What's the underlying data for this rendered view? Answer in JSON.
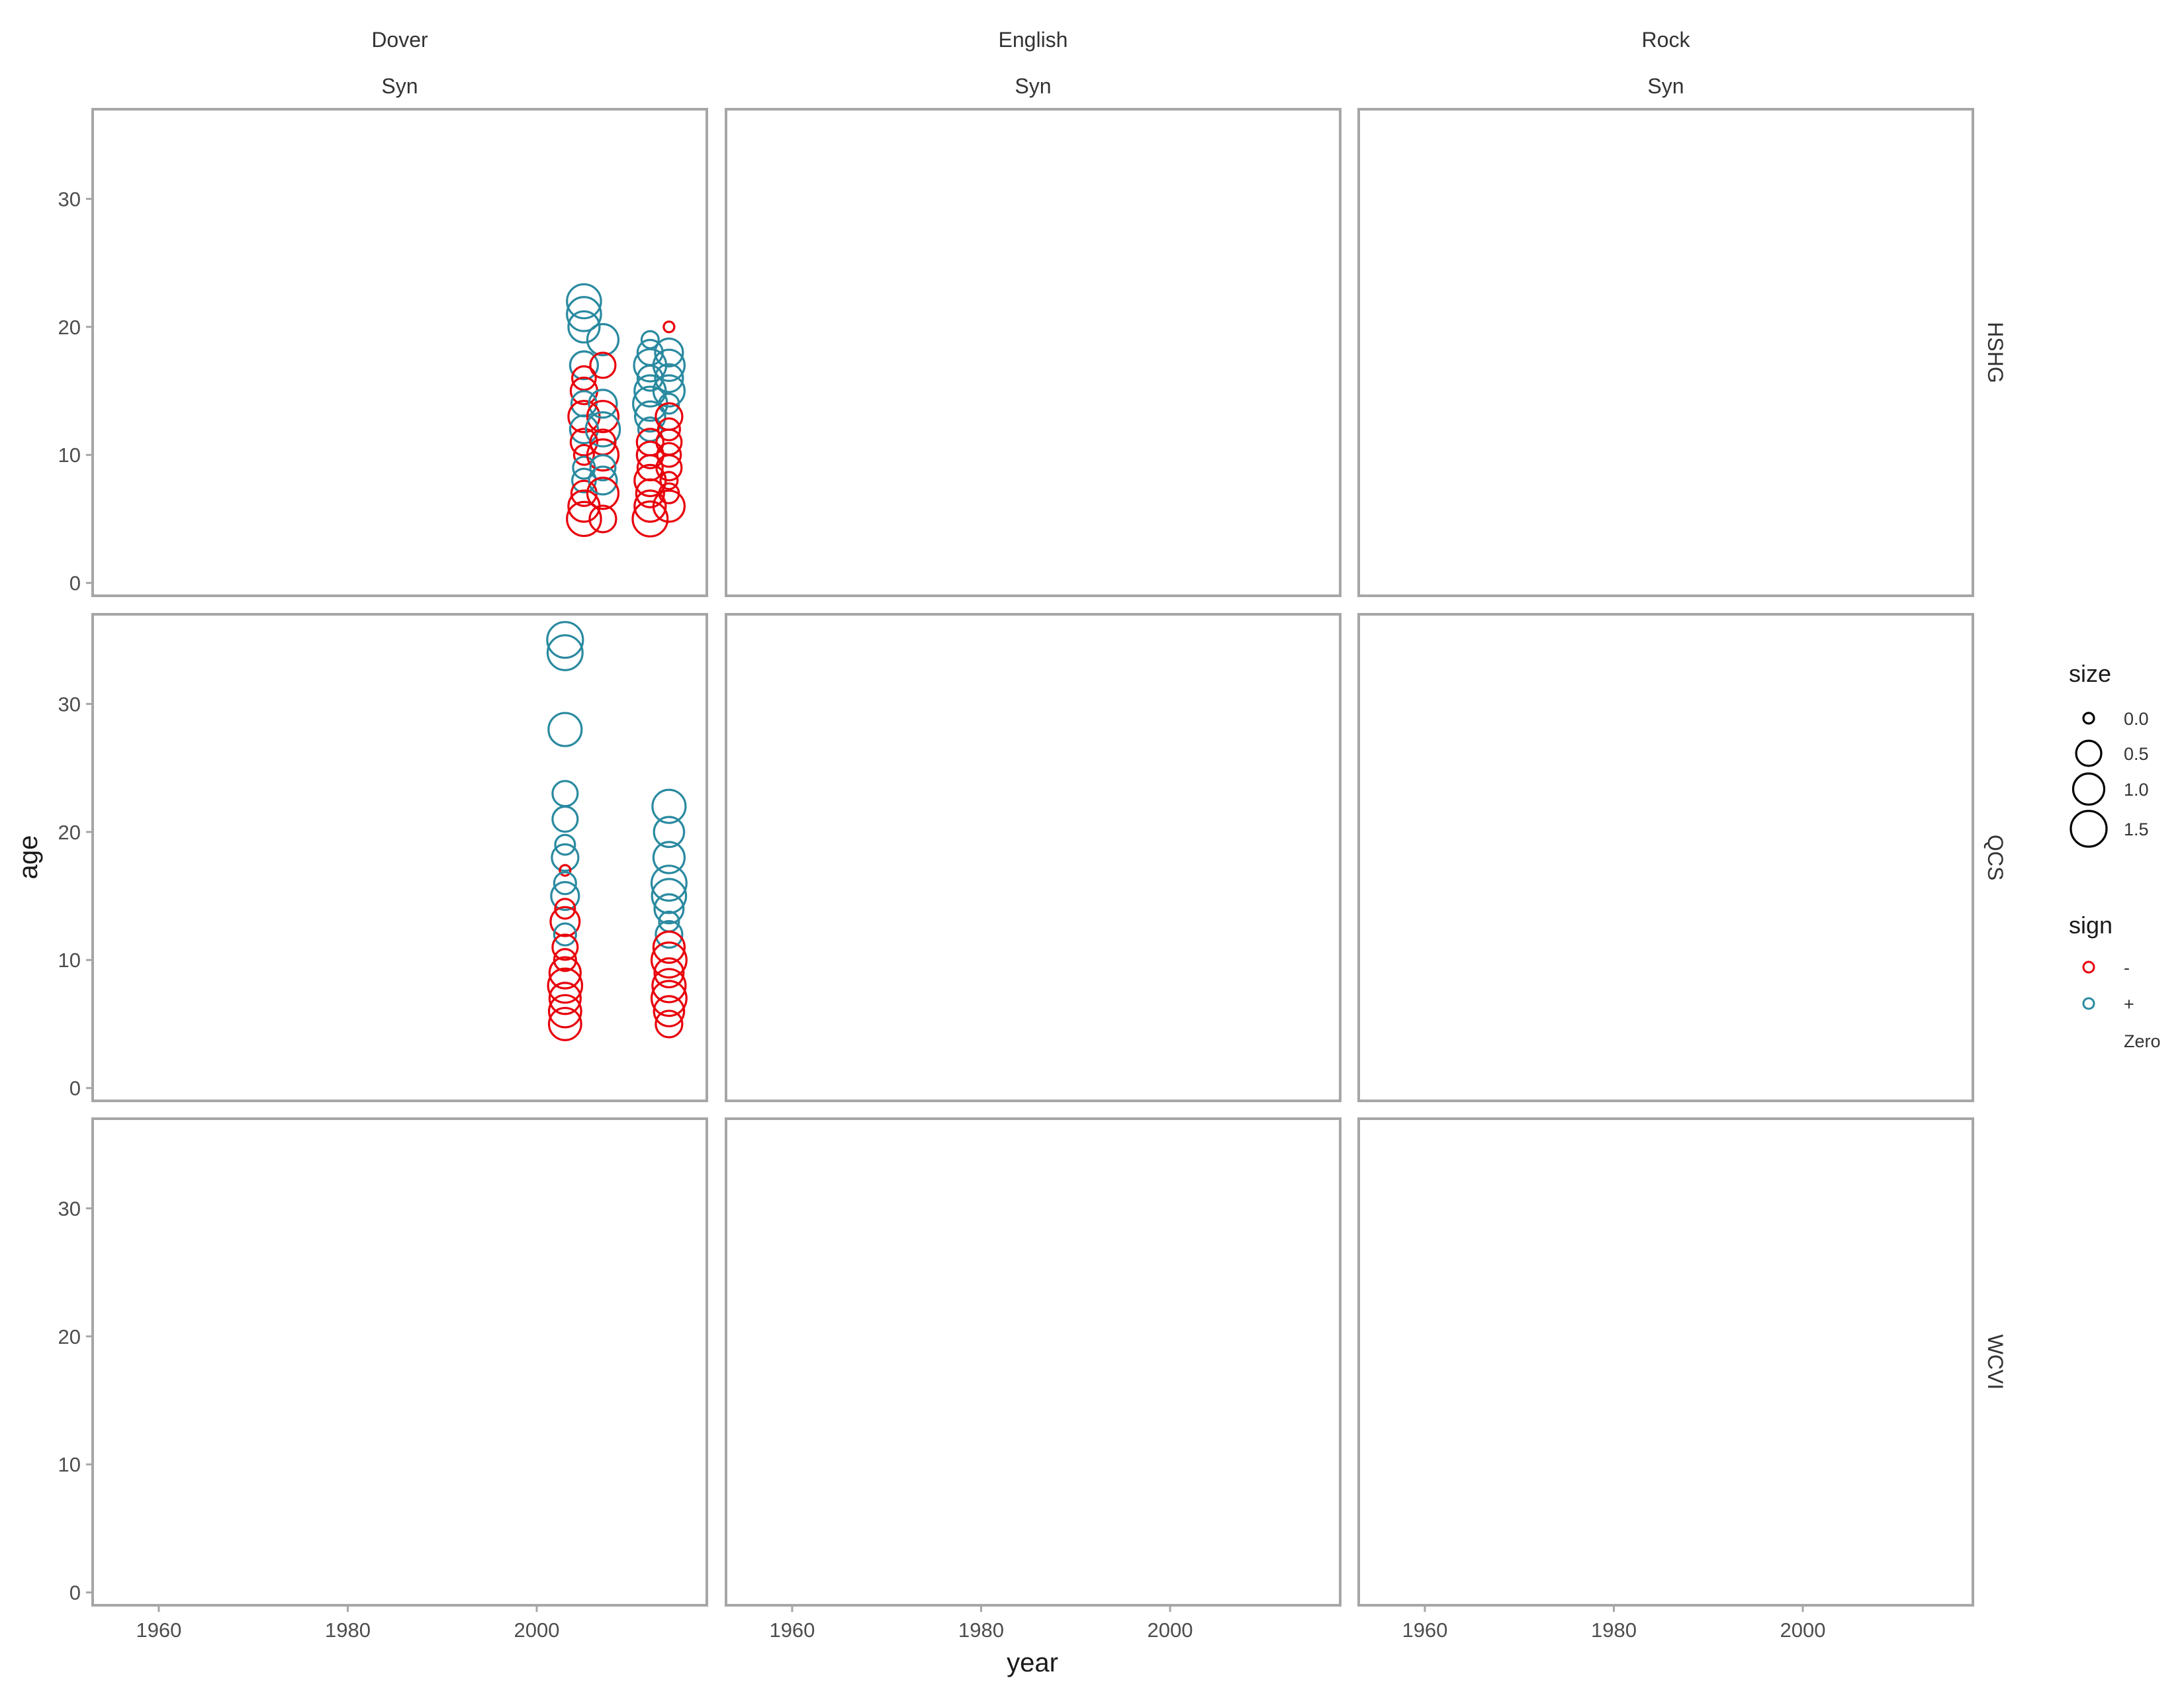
{
  "chart_data": {
    "type": "scatter",
    "facet_columns": [
      {
        "top": "Dover",
        "bottom": "Syn"
      },
      {
        "top": "English",
        "bottom": "Syn"
      },
      {
        "top": "Rock",
        "bottom": "Syn"
      }
    ],
    "facet_rows": [
      "HSHG",
      "QCS",
      "WCVI"
    ],
    "xlabel": "year",
    "ylabel": "age",
    "x_ticks": [
      1960,
      1980,
      2000
    ],
    "y_ticks": [
      0,
      10,
      20,
      30
    ],
    "xlim": [
      1953,
      2018
    ],
    "ylim": [
      -1,
      37
    ],
    "legend_size": {
      "title": "size",
      "values": [
        0.0,
        0.5,
        1.0,
        1.5
      ],
      "labels": [
        "0.0",
        "0.5",
        "1.0",
        "1.5"
      ]
    },
    "legend_sign": {
      "title": "sign",
      "entries": [
        {
          "label": "-",
          "color": "#e8000b"
        },
        {
          "label": "+",
          "color": "#2a8aa0"
        },
        {
          "label": "Zero",
          "color": null
        }
      ]
    },
    "colors": {
      "-": "#e8000b",
      "+": "#2a8aa0"
    },
    "panels": [
      {
        "row": 0,
        "col": 0,
        "points": [
          {
            "x": 2005,
            "y": 22,
            "size": 1.3,
            "sign": "+"
          },
          {
            "x": 2005,
            "y": 21,
            "size": 1.3,
            "sign": "+"
          },
          {
            "x": 2005,
            "y": 20,
            "size": 1.0,
            "sign": "+"
          },
          {
            "x": 2005,
            "y": 17,
            "size": 0.7,
            "sign": "+"
          },
          {
            "x": 2005,
            "y": 16,
            "size": 0.4,
            "sign": "-"
          },
          {
            "x": 2005,
            "y": 15,
            "size": 0.6,
            "sign": "-"
          },
          {
            "x": 2005,
            "y": 14,
            "size": 0.5,
            "sign": "+"
          },
          {
            "x": 2005,
            "y": 13,
            "size": 1.0,
            "sign": "-"
          },
          {
            "x": 2005,
            "y": 12,
            "size": 0.7,
            "sign": "+"
          },
          {
            "x": 2005,
            "y": 11,
            "size": 0.6,
            "sign": "-"
          },
          {
            "x": 2005,
            "y": 10,
            "size": 0.2,
            "sign": "-"
          },
          {
            "x": 2005,
            "y": 9,
            "size": 0.3,
            "sign": "+"
          },
          {
            "x": 2005,
            "y": 8,
            "size": 0.4,
            "sign": "+"
          },
          {
            "x": 2005,
            "y": 7,
            "size": 0.5,
            "sign": "-"
          },
          {
            "x": 2005,
            "y": 6,
            "size": 1.0,
            "sign": "-"
          },
          {
            "x": 2005,
            "y": 5,
            "size": 1.3,
            "sign": "-"
          },
          {
            "x": 2007,
            "y": 19,
            "size": 1.0,
            "sign": "+"
          },
          {
            "x": 2007,
            "y": 17,
            "size": 0.5,
            "sign": "-"
          },
          {
            "x": 2007,
            "y": 14,
            "size": 0.7,
            "sign": "+"
          },
          {
            "x": 2007,
            "y": 13,
            "size": 1.0,
            "sign": "-"
          },
          {
            "x": 2007,
            "y": 12,
            "size": 1.3,
            "sign": "+"
          },
          {
            "x": 2007,
            "y": 11,
            "size": 0.5,
            "sign": "-"
          },
          {
            "x": 2007,
            "y": 10,
            "size": 1.0,
            "sign": "-"
          },
          {
            "x": 2007,
            "y": 9,
            "size": 0.5,
            "sign": "+"
          },
          {
            "x": 2007,
            "y": 8,
            "size": 0.7,
            "sign": "+"
          },
          {
            "x": 2007,
            "y": 7,
            "size": 1.0,
            "sign": "-"
          },
          {
            "x": 2007,
            "y": 5,
            "size": 0.6,
            "sign": "-"
          },
          {
            "x": 2012,
            "y": 19,
            "size": 0.1,
            "sign": "+"
          },
          {
            "x": 2012,
            "y": 18,
            "size": 0.5,
            "sign": "+"
          },
          {
            "x": 2012,
            "y": 17,
            "size": 1.1,
            "sign": "+"
          },
          {
            "x": 2012,
            "y": 16,
            "size": 0.5,
            "sign": "+"
          },
          {
            "x": 2012,
            "y": 15,
            "size": 1.0,
            "sign": "+"
          },
          {
            "x": 2012,
            "y": 14,
            "size": 1.3,
            "sign": "+"
          },
          {
            "x": 2012,
            "y": 13,
            "size": 0.9,
            "sign": "+"
          },
          {
            "x": 2012,
            "y": 12,
            "size": 0.4,
            "sign": "+"
          },
          {
            "x": 2012,
            "y": 11,
            "size": 0.6,
            "sign": "-"
          },
          {
            "x": 2012,
            "y": 10,
            "size": 0.6,
            "sign": "-"
          },
          {
            "x": 2012,
            "y": 9,
            "size": 0.5,
            "sign": "-"
          },
          {
            "x": 2012,
            "y": 8,
            "size": 1.0,
            "sign": "-"
          },
          {
            "x": 2012,
            "y": 7,
            "size": 0.7,
            "sign": "-"
          },
          {
            "x": 2012,
            "y": 6,
            "size": 1.0,
            "sign": "-"
          },
          {
            "x": 2012,
            "y": 5,
            "size": 1.4,
            "sign": "-"
          },
          {
            "x": 2014,
            "y": 20,
            "size": 0.0,
            "sign": "-"
          },
          {
            "x": 2014,
            "y": 18,
            "size": 0.7,
            "sign": "+"
          },
          {
            "x": 2014,
            "y": 17,
            "size": 1.0,
            "sign": "+"
          },
          {
            "x": 2014,
            "y": 16,
            "size": 0.7,
            "sign": "+"
          },
          {
            "x": 2014,
            "y": 15,
            "size": 1.0,
            "sign": "+"
          },
          {
            "x": 2014,
            "y": 14,
            "size": 0.2,
            "sign": "+"
          },
          {
            "x": 2014,
            "y": 13,
            "size": 0.6,
            "sign": "-"
          },
          {
            "x": 2014,
            "y": 12,
            "size": 0.3,
            "sign": "-"
          },
          {
            "x": 2014,
            "y": 11,
            "size": 0.5,
            "sign": "-"
          },
          {
            "x": 2014,
            "y": 10,
            "size": 0.4,
            "sign": "-"
          },
          {
            "x": 2014,
            "y": 9,
            "size": 0.5,
            "sign": "-"
          },
          {
            "x": 2014,
            "y": 8,
            "size": 0.1,
            "sign": "-"
          },
          {
            "x": 2014,
            "y": 7,
            "size": 0.2,
            "sign": "-"
          },
          {
            "x": 2014,
            "y": 6,
            "size": 1.0,
            "sign": "-"
          }
        ]
      },
      {
        "row": 1,
        "col": 0,
        "points": [
          {
            "x": 2003,
            "y": 35,
            "size": 1.5,
            "sign": "+"
          },
          {
            "x": 2003,
            "y": 34,
            "size": 1.4,
            "sign": "+"
          },
          {
            "x": 2003,
            "y": 28,
            "size": 1.2,
            "sign": "+"
          },
          {
            "x": 2003,
            "y": 23,
            "size": 0.5,
            "sign": "+"
          },
          {
            "x": 2003,
            "y": 21,
            "size": 0.5,
            "sign": "+"
          },
          {
            "x": 2003,
            "y": 19,
            "size": 0.2,
            "sign": "+"
          },
          {
            "x": 2003,
            "y": 18,
            "size": 0.6,
            "sign": "+"
          },
          {
            "x": 2003,
            "y": 17,
            "size": 0.0,
            "sign": "-"
          },
          {
            "x": 2003,
            "y": 16,
            "size": 0.3,
            "sign": "+"
          },
          {
            "x": 2003,
            "y": 15,
            "size": 0.7,
            "sign": "+"
          },
          {
            "x": 2003,
            "y": 14,
            "size": 0.2,
            "sign": "-"
          },
          {
            "x": 2003,
            "y": 13,
            "size": 0.8,
            "sign": "-"
          },
          {
            "x": 2003,
            "y": 12,
            "size": 0.3,
            "sign": "+"
          },
          {
            "x": 2003,
            "y": 11,
            "size": 0.5,
            "sign": "-"
          },
          {
            "x": 2003,
            "y": 10,
            "size": 0.3,
            "sign": "-"
          },
          {
            "x": 2003,
            "y": 9,
            "size": 1.0,
            "sign": "-"
          },
          {
            "x": 2003,
            "y": 8,
            "size": 1.3,
            "sign": "-"
          },
          {
            "x": 2003,
            "y": 7,
            "size": 1.0,
            "sign": "-"
          },
          {
            "x": 2003,
            "y": 6,
            "size": 1.1,
            "sign": "-"
          },
          {
            "x": 2003,
            "y": 5,
            "size": 1.1,
            "sign": "-"
          },
          {
            "x": 2014,
            "y": 22,
            "size": 1.2,
            "sign": "+"
          },
          {
            "x": 2014,
            "y": 20,
            "size": 0.9,
            "sign": "+"
          },
          {
            "x": 2014,
            "y": 18,
            "size": 1.0,
            "sign": "+"
          },
          {
            "x": 2014,
            "y": 16,
            "size": 1.4,
            "sign": "+"
          },
          {
            "x": 2014,
            "y": 15,
            "size": 1.3,
            "sign": "+"
          },
          {
            "x": 2014,
            "y": 14,
            "size": 0.8,
            "sign": "+"
          },
          {
            "x": 2014,
            "y": 13,
            "size": 0.2,
            "sign": "+"
          },
          {
            "x": 2014,
            "y": 12,
            "size": 0.6,
            "sign": "+"
          },
          {
            "x": 2014,
            "y": 11,
            "size": 1.0,
            "sign": "-"
          },
          {
            "x": 2014,
            "y": 10,
            "size": 1.4,
            "sign": "-"
          },
          {
            "x": 2014,
            "y": 9,
            "size": 0.8,
            "sign": "-"
          },
          {
            "x": 2014,
            "y": 8,
            "size": 1.2,
            "sign": "-"
          },
          {
            "x": 2014,
            "y": 7,
            "size": 1.4,
            "sign": "-"
          },
          {
            "x": 2014,
            "y": 6,
            "size": 0.9,
            "sign": "-"
          },
          {
            "x": 2014,
            "y": 5,
            "size": 0.6,
            "sign": "-"
          }
        ]
      }
    ]
  }
}
